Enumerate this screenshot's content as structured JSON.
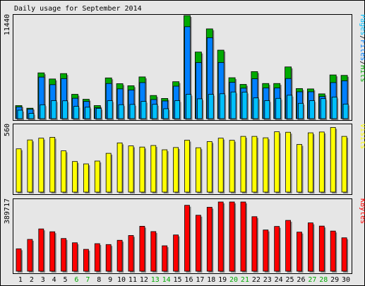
{
  "chart_data": {
    "type": "bar",
    "title": "Daily usage for September 2014",
    "categories": [
      "1",
      "2",
      "3",
      "4",
      "5",
      "6",
      "7",
      "8",
      "9",
      "10",
      "11",
      "12",
      "13",
      "14",
      "15",
      "16",
      "17",
      "18",
      "19",
      "20",
      "21",
      "22",
      "23",
      "24",
      "25",
      "26",
      "27",
      "28",
      "29",
      "30"
    ],
    "weekend_days": [
      "6",
      "7",
      "13",
      "14",
      "20",
      "21",
      "27",
      "28"
    ],
    "colors": {
      "background": "#e6e6e6",
      "hits": "#00aa00",
      "files": "#0080ff",
      "pages": "#00c0ff",
      "visits": "#ffff00",
      "kbytes": "#ff0000",
      "weekday_label": "#000000",
      "weekend_label": "#00aa00"
    },
    "panels": [
      {
        "id": "hits",
        "ymax_label": "11440",
        "ylim": [
          0,
          11440
        ],
        "legend_parts": [
          {
            "text": "Pages",
            "color": "#00c0ff"
          },
          {
            "text": "/",
            "color": "#000000"
          },
          {
            "text": "Files",
            "color": "#0080ff"
          },
          {
            "text": "/",
            "color": "#000000"
          },
          {
            "text": "Hits",
            "color": "#00aa00"
          }
        ],
        "series": [
          {
            "name": "Hits",
            "values": [
              1450,
              1160,
              5080,
              4400,
              5000,
              2700,
              2150,
              1450,
              4520,
              3880,
              3650,
              4630,
              2570,
              2240,
              4100,
              11440,
              7390,
              9960,
              7600,
              4540,
              3800,
              5220,
              3900,
              3900,
              5740,
              3340,
              3300,
              2750,
              4850,
              4800
            ]
          },
          {
            "name": "Files",
            "values": [
              1300,
              1050,
              4610,
              3770,
              4440,
              2260,
              1910,
              1200,
              3900,
              3300,
              3180,
              4000,
              2120,
              1960,
              3600,
              10200,
              6220,
              8980,
              6230,
              4030,
              3380,
              4420,
              3400,
              3400,
              4450,
              2980,
              2980,
              2450,
              4000,
              4200
            ]
          },
          {
            "name": "Pages",
            "values": [
              940,
              580,
              1540,
              2000,
              1980,
              1370,
              1270,
              1140,
              1990,
              1550,
              1580,
              1920,
              1590,
              1100,
              2000,
              2700,
              2200,
              2700,
              2760,
              2960,
              2950,
              2300,
              2000,
              2250,
              2600,
              1700,
              2000,
              2220,
              2400,
              1620
            ]
          }
        ]
      },
      {
        "id": "visits",
        "ymax_label": "560",
        "ylim": [
          0,
          560
        ],
        "legend_parts": [
          {
            "text": "Visits",
            "color": "#ffff00"
          }
        ],
        "series": [
          {
            "name": "Visits",
            "values": [
              365,
              440,
              455,
              462,
              348,
              258,
              238,
              262,
              327,
              415,
              390,
              380,
              393,
              357,
              376,
              438,
              374,
              426,
              455,
              437,
              470,
              470,
              458,
              509,
              505,
              402,
              500,
              507,
              545,
              470
            ]
          }
        ]
      },
      {
        "id": "kbytes",
        "ymax_label": "389717",
        "ylim": [
          0,
          389717
        ],
        "legend_parts": [
          {
            "text": "KBytes",
            "color": "#ff0000"
          }
        ],
        "series": [
          {
            "name": "KBytes",
            "values": [
              126000,
              179000,
              238000,
              222000,
              184000,
              160000,
              123000,
              155000,
              150000,
              174000,
              201000,
              253000,
              223000,
              143000,
              204000,
              371000,
              315000,
              360000,
              389717,
              389717,
              389717,
              307000,
              232000,
              252000,
              286000,
              220000,
              272000,
              254000,
              226000,
              188000
            ]
          }
        ]
      }
    ]
  }
}
